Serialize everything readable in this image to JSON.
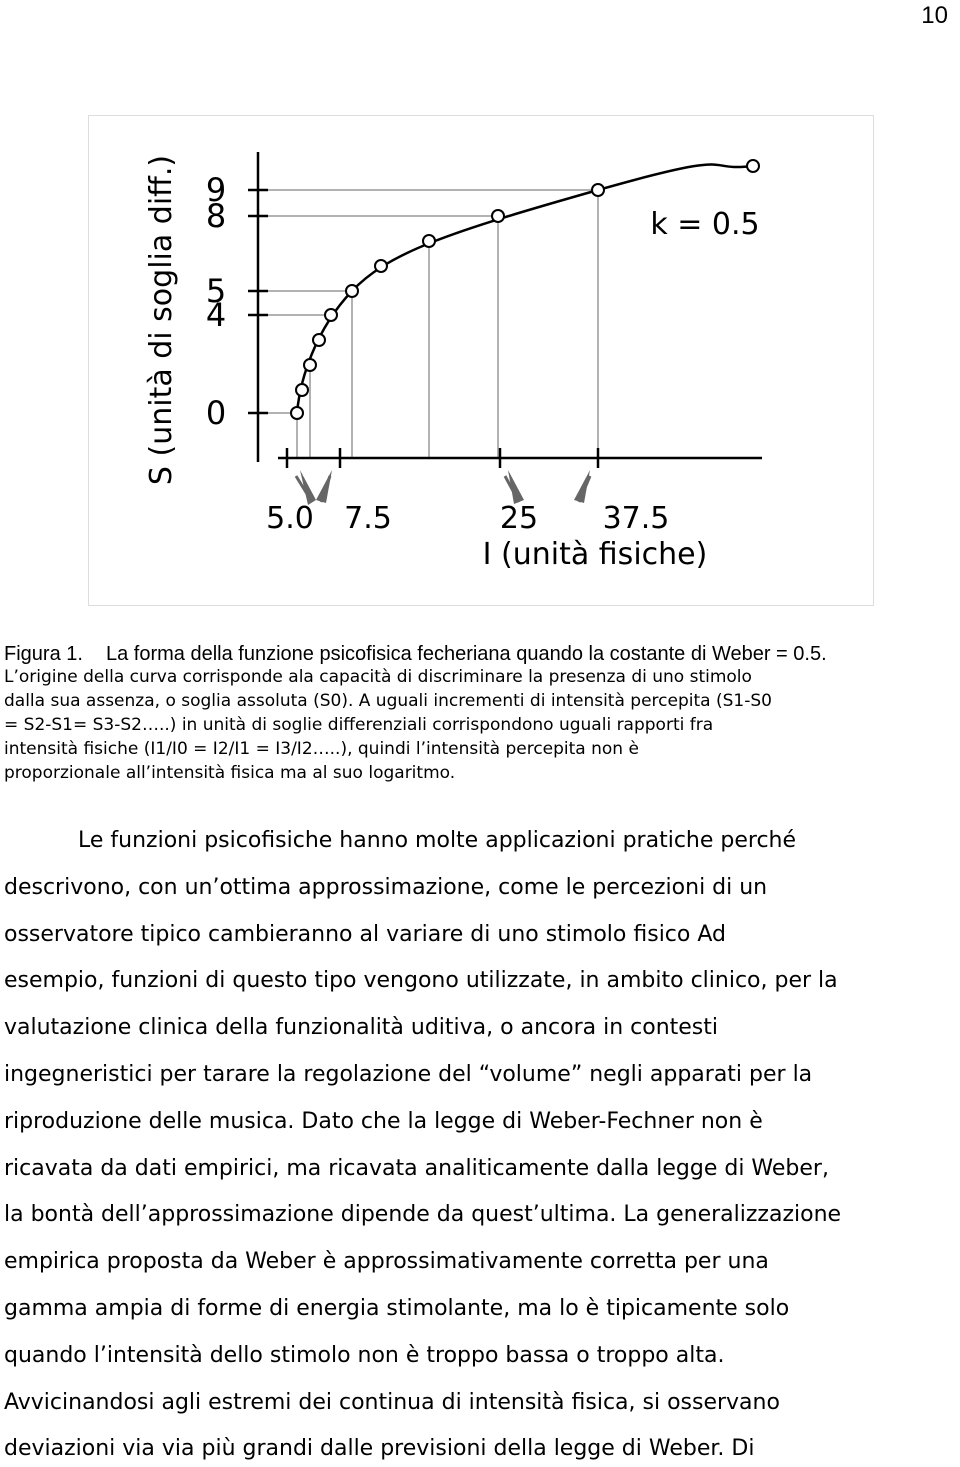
{
  "page_number": "10",
  "figure": {
    "y_axis_label": "S (unità di soglia diff.)",
    "x_axis_label": "I (unità fisiche)",
    "y_tick_labels": [
      "9",
      "8",
      "5",
      "4",
      "0"
    ],
    "x_tick_labels": [
      "5.0",
      "7.5",
      "25",
      "37.5"
    ],
    "annotation": "k = 0.5"
  },
  "caption": {
    "label": "Figura 1.",
    "lines": [
      "La forma della funzione psicofisica fecheriana quando la costante di Weber = 0.5.",
      "L’origine della curva corrisponde ala capacità di discriminare la presenza di uno stimolo",
      "dalla sua assenza, o soglia assoluta (S0). A uguali incrementi di intensità percepita (S1-S0",
      "= S2-S1= S3-S2…..) in unità di soglie differenziali corrispondono uguali rapporti fra",
      "intensità fisiche (I1/I0 = I2/I1 = I3/I2…..), quindi l’intensità percepita non è",
      "proporzionale all’intensità fisica ma al suo logaritmo."
    ]
  },
  "body": {
    "lines": [
      "Le funzioni psicofisiche hanno molte applicazioni pratiche perché",
      "descrivono, con un’ottima approssimazione, come le percezioni di un",
      "osservatore tipico cambieranno al variare di uno stimolo fisico  Ad",
      "esempio, funzioni di questo tipo vengono utilizzate, in ambito clinico, per la",
      "valutazione clinica della funzionalità uditiva, o ancora in contesti",
      "ingegneristici per tarare la regolazione del  “volume”  negli apparati per la",
      "riproduzione delle musica. Dato che la legge di Weber-Fechner non è",
      "ricavata da dati empirici, ma ricavata analiticamente dalla legge di Weber,",
      "la bontà dell’approssimazione dipende da quest’ultima. La generalizzazione",
      "empirica proposta da Weber è approssimativamente corretta per una",
      "gamma ampia di forme di energia stimolante, ma lo è tipicamente solo",
      "quando l’intensità dello stimolo non è troppo bassa o troppo alta.",
      "Avvicinandosi agli estremi dei continua di intensità fisica, si osservano",
      "deviazioni via via più grandi dalle previsioni della legge di Weber. Di"
    ]
  }
}
